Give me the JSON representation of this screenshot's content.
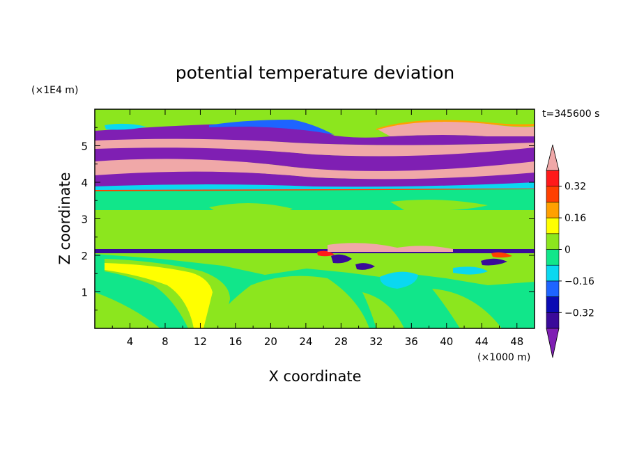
{
  "chart_data": {
    "type": "heatmap",
    "title": "potential temperature deviation",
    "xlabel": "X coordinate",
    "ylabel": "Z coordinate",
    "x_unit": "(×1000 m)",
    "y_unit": "(×1E4 m)",
    "time_label": "t=345600 s",
    "xlim": [
      0,
      50
    ],
    "ylim": [
      0,
      6
    ],
    "x_ticks": [
      "4",
      "8",
      "12",
      "16",
      "20",
      "24",
      "28",
      "32",
      "36",
      "40",
      "44",
      "48"
    ],
    "y_ticks": [
      "1",
      "2",
      "3",
      "4",
      "5"
    ],
    "grid": false,
    "colorbar": {
      "position": "right",
      "extend": "both",
      "levels": [
        -0.4,
        -0.32,
        -0.24,
        -0.16,
        -0.08,
        0,
        0.08,
        0.16,
        0.24,
        0.32,
        0.4
      ],
      "tick_labels": [
        "0.32",
        "0.16",
        "0",
        "−0.16",
        "−0.32"
      ],
      "colors_low_to_high": [
        "#7f1fb3",
        "#3a0a9a",
        "#0a0ab3",
        "#1e64ff",
        "#0ad8f0",
        "#11e68a",
        "#8ce61e",
        "#ffff00",
        "#ffa000",
        "#ff4000",
        "#ff1a1a",
        "#f0a8a8"
      ]
    },
    "color_regions": [
      {
        "z_range": [
          0,
          2.1
        ],
        "dominant": "0 to 0.08",
        "note": "mostly near-zero, slight positive plume around x 8-14"
      },
      {
        "z_range": [
          2.1,
          2.15
        ],
        "dominant": "< -0.32",
        "note": "thin negative band"
      },
      {
        "z_range": [
          2.2,
          3.7
        ],
        "dominant": "0 to 0.08"
      },
      {
        "z_range": [
          3.8,
          5.6
        ],
        "dominant": "alternating > 0.4 and < -0.4 layers"
      },
      {
        "z_range": [
          5.6,
          6.0
        ],
        "dominant": "0 to 0.08"
      }
    ]
  }
}
